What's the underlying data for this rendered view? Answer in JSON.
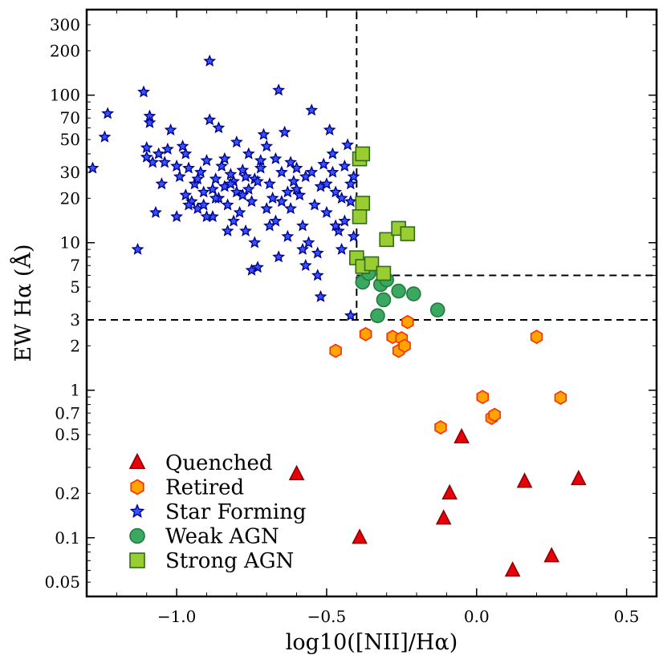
{
  "chart_data": {
    "type": "scatter",
    "x_scale": "linear",
    "y_scale": "log",
    "xlim": [
      -1.3,
      0.6
    ],
    "ylim": [
      0.04,
      380
    ],
    "xlabel": "log10([NII]/Hα)",
    "ylabel": "EW Hα (Å)",
    "x_ticks": [
      -1.0,
      -0.5,
      0.0,
      0.5
    ],
    "x_tick_labels": [
      "−1.0",
      "−0.5",
      "0.0",
      "0.5"
    ],
    "y_ticks": [
      0.05,
      0.1,
      0.2,
      0.5,
      0.7,
      1,
      2,
      3,
      5,
      7,
      10,
      20,
      30,
      50,
      70,
      100,
      200,
      300
    ],
    "y_tick_labels": [
      "0.05",
      "0.1",
      "0.2",
      "0.5",
      "0.7",
      "1",
      "2",
      "3",
      "5",
      "7",
      "10",
      "20",
      "30",
      "50",
      "70",
      "100",
      "200",
      "300"
    ],
    "grid": false,
    "legend_position": "lower-left",
    "reference_lines": [
      {
        "orientation": "vertical",
        "x": -0.4,
        "y_from": 3,
        "y_to": 380
      },
      {
        "orientation": "horizontal",
        "y": 3,
        "x_from": -1.3,
        "x_to": 0.6
      },
      {
        "orientation": "horizontal",
        "y": 6,
        "x_from": -0.4,
        "x_to": 0.6
      }
    ],
    "series": [
      {
        "name": "Quenched",
        "marker": "triangle",
        "fill": "#e8000b",
        "stroke": "#8b0000",
        "points": [
          {
            "x": -0.6,
            "y": 0.27
          },
          {
            "x": -0.39,
            "y": 0.1
          },
          {
            "x": -0.11,
            "y": 0.135
          },
          {
            "x": -0.09,
            "y": 0.2
          },
          {
            "x": -0.05,
            "y": 0.48
          },
          {
            "x": 0.12,
            "y": 0.06
          },
          {
            "x": 0.16,
            "y": 0.24
          },
          {
            "x": 0.25,
            "y": 0.075
          },
          {
            "x": 0.34,
            "y": 0.25
          }
        ]
      },
      {
        "name": "Retired",
        "marker": "hexagon",
        "fill": "#ffa500",
        "stroke": "#ff2a00",
        "points": [
          {
            "x": -0.47,
            "y": 1.85
          },
          {
            "x": -0.37,
            "y": 2.4
          },
          {
            "x": -0.28,
            "y": 2.3
          },
          {
            "x": -0.26,
            "y": 1.85
          },
          {
            "x": -0.25,
            "y": 2.25
          },
          {
            "x": -0.24,
            "y": 2.0
          },
          {
            "x": -0.23,
            "y": 2.9
          },
          {
            "x": -0.12,
            "y": 0.56
          },
          {
            "x": 0.02,
            "y": 0.9
          },
          {
            "x": 0.05,
            "y": 0.65
          },
          {
            "x": 0.06,
            "y": 0.68
          },
          {
            "x": 0.2,
            "y": 2.3
          },
          {
            "x": 0.28,
            "y": 0.89
          }
        ]
      },
      {
        "name": "Star Forming",
        "marker": "star",
        "fill": "#3355ff",
        "stroke": "#00008b",
        "points": [
          {
            "x": -1.28,
            "y": 32
          },
          {
            "x": -1.23,
            "y": 75
          },
          {
            "x": -1.24,
            "y": 52
          },
          {
            "x": -1.13,
            "y": 9
          },
          {
            "x": -1.11,
            "y": 105
          },
          {
            "x": -1.1,
            "y": 44
          },
          {
            "x": -1.08,
            "y": 35
          },
          {
            "x": -1.09,
            "y": 72
          },
          {
            "x": -1.09,
            "y": 65
          },
          {
            "x": -1.07,
            "y": 16
          },
          {
            "x": -1.06,
            "y": 40
          },
          {
            "x": -1.04,
            "y": 35
          },
          {
            "x": -1.02,
            "y": 58
          },
          {
            "x": -1.0,
            "y": 15
          },
          {
            "x": -0.99,
            "y": 28
          },
          {
            "x": -0.98,
            "y": 45
          },
          {
            "x": -0.97,
            "y": 21
          },
          {
            "x": -0.96,
            "y": 32
          },
          {
            "x": -0.95,
            "y": 19
          },
          {
            "x": -0.94,
            "y": 25
          },
          {
            "x": -0.93,
            "y": 17
          },
          {
            "x": -0.92,
            "y": 30
          },
          {
            "x": -0.91,
            "y": 22
          },
          {
            "x": -0.9,
            "y": 36
          },
          {
            "x": -0.89,
            "y": 170
          },
          {
            "x": -0.89,
            "y": 68
          },
          {
            "x": -0.88,
            "y": 15
          },
          {
            "x": -0.87,
            "y": 27
          },
          {
            "x": -0.86,
            "y": 20
          },
          {
            "x": -0.85,
            "y": 33
          },
          {
            "x": -0.84,
            "y": 24
          },
          {
            "x": -0.83,
            "y": 18
          },
          {
            "x": -0.82,
            "y": 29
          },
          {
            "x": -0.81,
            "y": 26
          },
          {
            "x": -0.8,
            "y": 22
          },
          {
            "x": -0.79,
            "y": 16
          },
          {
            "x": -0.78,
            "y": 31
          },
          {
            "x": -0.77,
            "y": 12
          },
          {
            "x": -0.76,
            "y": 23
          },
          {
            "x": -0.75,
            "y": 19
          },
          {
            "x": -0.74,
            "y": 27
          },
          {
            "x": -0.73,
            "y": 6.8
          },
          {
            "x": -0.72,
            "y": 36
          },
          {
            "x": -0.71,
            "y": 54
          },
          {
            "x": -0.7,
            "y": 45
          },
          {
            "x": -0.69,
            "y": 25
          },
          {
            "x": -0.68,
            "y": 20
          },
          {
            "x": -0.67,
            "y": 14
          },
          {
            "x": -0.66,
            "y": 108
          },
          {
            "x": -0.65,
            "y": 30
          },
          {
            "x": -0.64,
            "y": 56
          },
          {
            "x": -0.63,
            "y": 22
          },
          {
            "x": -0.62,
            "y": 17
          },
          {
            "x": -0.61,
            "y": 26
          },
          {
            "x": -0.6,
            "y": 32
          },
          {
            "x": -0.59,
            "y": 21
          },
          {
            "x": -0.58,
            "y": 13
          },
          {
            "x": -0.57,
            "y": 28
          },
          {
            "x": -0.56,
            "y": 10
          },
          {
            "x": -0.55,
            "y": 79
          },
          {
            "x": -0.54,
            "y": 18
          },
          {
            "x": -0.53,
            "y": 8.5
          },
          {
            "x": -0.52,
            "y": 24
          },
          {
            "x": -0.51,
            "y": 34
          },
          {
            "x": -0.5,
            "y": 16
          },
          {
            "x": -0.49,
            "y": 58
          },
          {
            "x": -0.48,
            "y": 40
          },
          {
            "x": -0.47,
            "y": 22
          },
          {
            "x": -0.46,
            "y": 12
          },
          {
            "x": -0.45,
            "y": 20
          },
          {
            "x": -0.44,
            "y": 14
          },
          {
            "x": -0.43,
            "y": 46
          },
          {
            "x": -0.42,
            "y": 25
          },
          {
            "x": -0.41,
            "y": 11
          },
          {
            "x": -0.42,
            "y": 3.2
          },
          {
            "x": -0.52,
            "y": 4.3
          },
          {
            "x": -0.73,
            "y": 26
          },
          {
            "x": -0.76,
            "y": 40
          },
          {
            "x": -0.8,
            "y": 48
          },
          {
            "x": -0.86,
            "y": 60
          },
          {
            "x": -0.84,
            "y": 37
          },
          {
            "x": -0.78,
            "y": 21
          },
          {
            "x": -0.7,
            "y": 17
          },
          {
            "x": -0.65,
            "y": 19
          },
          {
            "x": -0.6,
            "y": 23
          },
          {
            "x": -0.55,
            "y": 30
          },
          {
            "x": -0.5,
            "y": 25
          },
          {
            "x": -0.47,
            "y": 13
          },
          {
            "x": -0.58,
            "y": 9
          },
          {
            "x": -0.63,
            "y": 11
          },
          {
            "x": -0.69,
            "y": 13
          },
          {
            "x": -0.74,
            "y": 10
          },
          {
            "x": -0.81,
            "y": 14
          },
          {
            "x": -0.88,
            "y": 23
          },
          {
            "x": -0.93,
            "y": 27
          },
          {
            "x": -1.0,
            "y": 33
          },
          {
            "x": -1.05,
            "y": 25
          },
          {
            "x": -0.96,
            "y": 18
          },
          {
            "x": -0.9,
            "y": 15
          },
          {
            "x": -0.83,
            "y": 12
          },
          {
            "x": -0.75,
            "y": 6.5
          },
          {
            "x": -0.66,
            "y": 8
          },
          {
            "x": -0.53,
            "y": 6
          },
          {
            "x": -0.57,
            "y": 7
          },
          {
            "x": -0.45,
            "y": 9
          },
          {
            "x": -0.42,
            "y": 19
          },
          {
            "x": -0.41,
            "y": 28
          },
          {
            "x": -0.44,
            "y": 33
          },
          {
            "x": -0.48,
            "y": 30
          },
          {
            "x": -0.62,
            "y": 35
          },
          {
            "x": -0.67,
            "y": 37
          },
          {
            "x": -0.72,
            "y": 32
          },
          {
            "x": -0.77,
            "y": 28
          },
          {
            "x": -0.82,
            "y": 25
          },
          {
            "x": -0.87,
            "y": 20
          },
          {
            "x": -0.91,
            "y": 18
          },
          {
            "x": -0.97,
            "y": 40
          },
          {
            "x": -1.03,
            "y": 43
          },
          {
            "x": -1.1,
            "y": 38
          }
        ]
      },
      {
        "name": "Weak AGN",
        "marker": "circle",
        "fill": "#3aa860",
        "stroke": "#1f7a3c",
        "points": [
          {
            "x": -0.38,
            "y": 5.4
          },
          {
            "x": -0.36,
            "y": 6.2
          },
          {
            "x": -0.33,
            "y": 3.2
          },
          {
            "x": -0.32,
            "y": 5.2
          },
          {
            "x": -0.31,
            "y": 4.1
          },
          {
            "x": -0.3,
            "y": 5.6
          },
          {
            "x": -0.26,
            "y": 4.7
          },
          {
            "x": -0.21,
            "y": 4.5
          },
          {
            "x": -0.13,
            "y": 3.5
          }
        ]
      },
      {
        "name": "Strong AGN",
        "marker": "square",
        "fill": "#9acd32",
        "stroke": "#2e6b1a",
        "points": [
          {
            "x": -0.39,
            "y": 37
          },
          {
            "x": -0.38,
            "y": 40
          },
          {
            "x": -0.38,
            "y": 18.5
          },
          {
            "x": -0.39,
            "y": 15
          },
          {
            "x": -0.4,
            "y": 7.9
          },
          {
            "x": -0.38,
            "y": 6.9
          },
          {
            "x": -0.35,
            "y": 7.2
          },
          {
            "x": -0.31,
            "y": 6.2
          },
          {
            "x": -0.3,
            "y": 10.5
          },
          {
            "x": -0.26,
            "y": 12.5
          },
          {
            "x": -0.23,
            "y": 11.5
          }
        ]
      }
    ]
  }
}
